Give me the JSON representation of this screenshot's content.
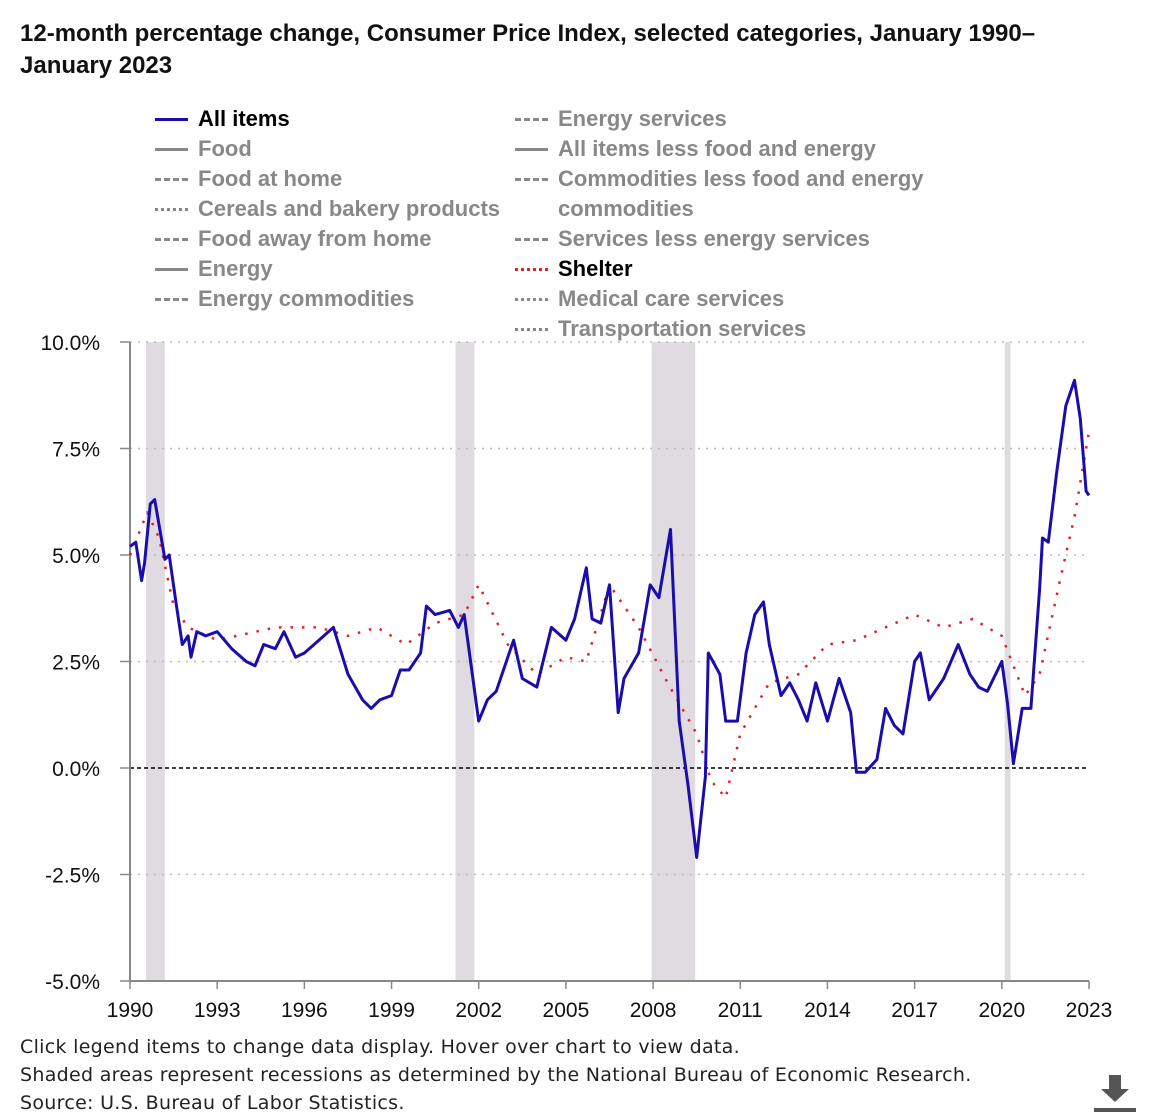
{
  "title": "12-month percentage change, Consumer Price Index, selected categories, January 1990–January 2023",
  "legend_left": [
    {
      "label": "All items",
      "style": "solid",
      "color": "#1a0dab",
      "active": true
    },
    {
      "label": "Food",
      "style": "solid",
      "color": "#888888",
      "active": false
    },
    {
      "label": "Food at home",
      "style": "dashed",
      "color": "#888888",
      "active": false
    },
    {
      "label": "Cereals and bakery products",
      "style": "dotted",
      "color": "#888888",
      "active": false
    },
    {
      "label": "Food away from home",
      "style": "dashed",
      "color": "#888888",
      "active": false
    },
    {
      "label": "Energy",
      "style": "solid",
      "color": "#888888",
      "active": false
    },
    {
      "label": "Energy commodities",
      "style": "dashed",
      "color": "#888888",
      "active": false
    }
  ],
  "legend_right": [
    {
      "label": "Energy services",
      "style": "dashed",
      "color": "#888888",
      "active": false
    },
    {
      "label": "All items less food and energy",
      "style": "solid",
      "color": "#888888",
      "active": false
    },
    {
      "label": "Commodities less food and energy commodities",
      "style": "dashed",
      "color": "#888888",
      "active": false
    },
    {
      "label": "Services less energy services",
      "style": "dashed",
      "color": "#888888",
      "active": false
    },
    {
      "label": "Shelter",
      "style": "dotted",
      "color": "#e0202a",
      "active": true
    },
    {
      "label": "Medical care services",
      "style": "dotted",
      "color": "#888888",
      "active": false
    },
    {
      "label": "Transportation services",
      "style": "dotted",
      "color": "#888888",
      "active": false
    }
  ],
  "notes": {
    "line1": "Click legend items to change data display. Hover over chart to view data.",
    "line2": "Shaded areas represent recessions as determined by the National Bureau of Economic Research.",
    "line3": "Source: U.S. Bureau of Labor Statistics."
  },
  "download_icon": "download-icon",
  "chart_data": {
    "type": "line",
    "title": "12-month percentage change, Consumer Price Index, selected categories, January 1990–January 2023",
    "xlabel": "",
    "ylabel": "",
    "xlim": [
      1990,
      2023
    ],
    "ylim": [
      -5,
      10
    ],
    "x_ticks": [
      "1990",
      "1993",
      "1996",
      "1999",
      "2002",
      "2005",
      "2008",
      "2011",
      "2014",
      "2017",
      "2020",
      "2023"
    ],
    "y_ticks": [
      "10.0%",
      "7.5%",
      "5.0%",
      "2.5%",
      "0.0%",
      "-2.5%",
      "-5.0%"
    ],
    "y_tick_values": [
      10,
      7.5,
      5,
      2.5,
      0,
      -2.5,
      -5
    ],
    "grid": "horizontal dotted",
    "recessions": [
      [
        1990.55,
        1991.2
      ],
      [
        2001.2,
        2001.85
      ],
      [
        2007.95,
        2009.45
      ],
      [
        2020.1,
        2020.3
      ]
    ],
    "series": [
      {
        "name": "All items",
        "color": "#1a0dab",
        "style": "solid",
        "points": [
          [
            1990.0,
            5.2
          ],
          [
            1990.2,
            5.3
          ],
          [
            1990.4,
            4.4
          ],
          [
            1990.5,
            4.8
          ],
          [
            1990.7,
            6.2
          ],
          [
            1990.85,
            6.3
          ],
          [
            1991.0,
            5.7
          ],
          [
            1991.2,
            4.9
          ],
          [
            1991.35,
            5.0
          ],
          [
            1991.6,
            3.8
          ],
          [
            1991.8,
            2.9
          ],
          [
            1992.0,
            3.1
          ],
          [
            1992.1,
            2.6
          ],
          [
            1992.3,
            3.2
          ],
          [
            1992.6,
            3.1
          ],
          [
            1993.0,
            3.2
          ],
          [
            1993.5,
            2.8
          ],
          [
            1994.0,
            2.5
          ],
          [
            1994.3,
            2.4
          ],
          [
            1994.6,
            2.9
          ],
          [
            1995.0,
            2.8
          ],
          [
            1995.3,
            3.2
          ],
          [
            1995.7,
            2.6
          ],
          [
            1996.0,
            2.7
          ],
          [
            1996.5,
            3.0
          ],
          [
            1997.0,
            3.3
          ],
          [
            1997.5,
            2.2
          ],
          [
            1998.0,
            1.6
          ],
          [
            1998.3,
            1.4
          ],
          [
            1998.6,
            1.6
          ],
          [
            1999.0,
            1.7
          ],
          [
            1999.3,
            2.3
          ],
          [
            1999.6,
            2.3
          ],
          [
            2000.0,
            2.7
          ],
          [
            2000.2,
            3.8
          ],
          [
            2000.5,
            3.6
          ],
          [
            2001.0,
            3.7
          ],
          [
            2001.3,
            3.3
          ],
          [
            2001.5,
            3.6
          ],
          [
            2001.8,
            2.1
          ],
          [
            2002.0,
            1.1
          ],
          [
            2002.3,
            1.6
          ],
          [
            2002.6,
            1.8
          ],
          [
            2003.0,
            2.6
          ],
          [
            2003.2,
            3.0
          ],
          [
            2003.5,
            2.1
          ],
          [
            2004.0,
            1.9
          ],
          [
            2004.5,
            3.3
          ],
          [
            2005.0,
            3.0
          ],
          [
            2005.3,
            3.5
          ],
          [
            2005.7,
            4.7
          ],
          [
            2005.9,
            3.5
          ],
          [
            2006.2,
            3.4
          ],
          [
            2006.5,
            4.3
          ],
          [
            2006.8,
            1.3
          ],
          [
            2007.0,
            2.1
          ],
          [
            2007.5,
            2.7
          ],
          [
            2007.9,
            4.3
          ],
          [
            2008.2,
            4.0
          ],
          [
            2008.6,
            5.6
          ],
          [
            2008.9,
            1.1
          ],
          [
            2009.2,
            -0.4
          ],
          [
            2009.5,
            -2.1
          ],
          [
            2009.8,
            -0.2
          ],
          [
            2009.9,
            2.7
          ],
          [
            2010.3,
            2.2
          ],
          [
            2010.5,
            1.1
          ],
          [
            2010.9,
            1.1
          ],
          [
            2011.2,
            2.7
          ],
          [
            2011.5,
            3.6
          ],
          [
            2011.8,
            3.9
          ],
          [
            2012.0,
            2.9
          ],
          [
            2012.4,
            1.7
          ],
          [
            2012.7,
            2.0
          ],
          [
            2013.0,
            1.6
          ],
          [
            2013.3,
            1.1
          ],
          [
            2013.6,
            2.0
          ],
          [
            2014.0,
            1.1
          ],
          [
            2014.4,
            2.1
          ],
          [
            2014.8,
            1.3
          ],
          [
            2015.0,
            -0.1
          ],
          [
            2015.3,
            -0.1
          ],
          [
            2015.7,
            0.2
          ],
          [
            2016.0,
            1.4
          ],
          [
            2016.3,
            1.0
          ],
          [
            2016.6,
            0.8
          ],
          [
            2017.0,
            2.5
          ],
          [
            2017.2,
            2.7
          ],
          [
            2017.5,
            1.6
          ],
          [
            2018.0,
            2.1
          ],
          [
            2018.5,
            2.9
          ],
          [
            2018.9,
            2.2
          ],
          [
            2019.2,
            1.9
          ],
          [
            2019.5,
            1.8
          ],
          [
            2020.0,
            2.5
          ],
          [
            2020.2,
            1.5
          ],
          [
            2020.4,
            0.1
          ],
          [
            2020.7,
            1.4
          ],
          [
            2021.0,
            1.4
          ],
          [
            2021.3,
            4.2
          ],
          [
            2021.4,
            5.4
          ],
          [
            2021.6,
            5.3
          ],
          [
            2021.9,
            7.0
          ],
          [
            2022.2,
            8.5
          ],
          [
            2022.5,
            9.1
          ],
          [
            2022.7,
            8.2
          ],
          [
            2022.9,
            6.5
          ],
          [
            2023.0,
            6.4
          ]
        ]
      },
      {
        "name": "Shelter",
        "color": "#e0202a",
        "style": "dotted",
        "points": [
          [
            1990.0,
            5.0
          ],
          [
            1990.6,
            6.0
          ],
          [
            1991.0,
            5.4
          ],
          [
            1991.5,
            3.8
          ],
          [
            1992.0,
            3.3
          ],
          [
            1993.0,
            3.0
          ],
          [
            1995.0,
            3.3
          ],
          [
            1996.5,
            3.3
          ],
          [
            1997.5,
            3.1
          ],
          [
            1998.5,
            3.3
          ],
          [
            1999.5,
            2.9
          ],
          [
            2000.5,
            3.4
          ],
          [
            2001.5,
            3.6
          ],
          [
            2002.0,
            4.3
          ],
          [
            2003.0,
            2.9
          ],
          [
            2004.0,
            2.2
          ],
          [
            2005.0,
            2.6
          ],
          [
            2005.7,
            2.5
          ],
          [
            2006.5,
            4.3
          ],
          [
            2007.5,
            3.3
          ],
          [
            2008.5,
            2.0
          ],
          [
            2009.5,
            0.8
          ],
          [
            2010.0,
            -0.3
          ],
          [
            2010.5,
            -0.7
          ],
          [
            2011.0,
            0.8
          ],
          [
            2012.0,
            2.0
          ],
          [
            2013.0,
            2.2
          ],
          [
            2014.0,
            2.9
          ],
          [
            2015.0,
            3.0
          ],
          [
            2016.0,
            3.3
          ],
          [
            2017.0,
            3.6
          ],
          [
            2018.0,
            3.3
          ],
          [
            2019.0,
            3.5
          ],
          [
            2020.0,
            3.1
          ],
          [
            2020.8,
            1.7
          ],
          [
            2021.3,
            2.2
          ],
          [
            2022.0,
            4.4
          ],
          [
            2022.5,
            5.9
          ],
          [
            2023.0,
            7.9
          ]
        ]
      }
    ]
  }
}
